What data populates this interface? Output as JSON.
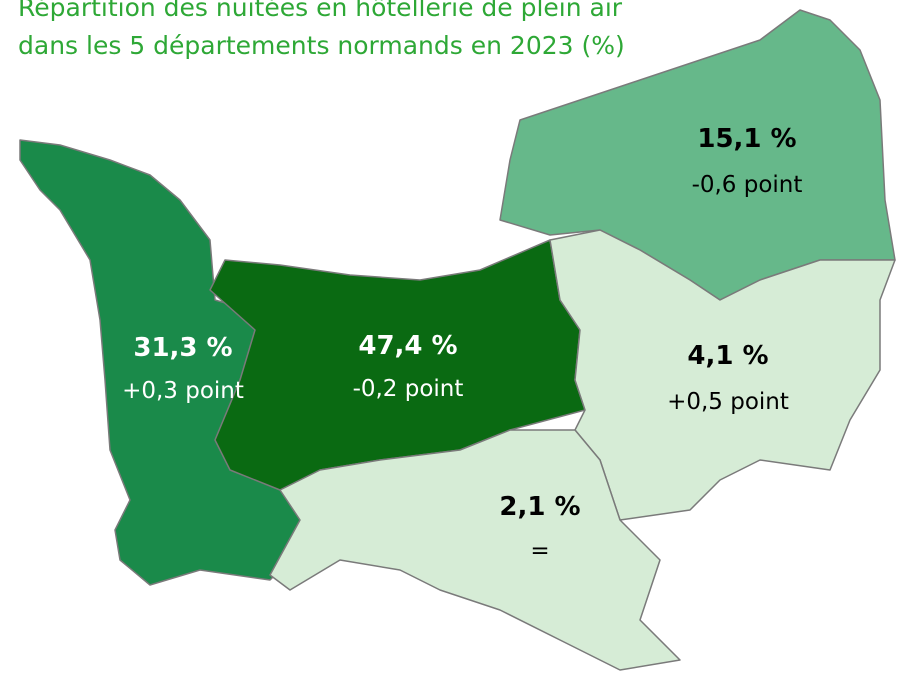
{
  "title": [
    "Répartition des nuitées en hôtellerie de plein air",
    "dans les 5 départements normands en 2023 (%)"
  ],
  "regions": [
    {
      "share": "31,3 %",
      "change": "+0,3 point",
      "color": "#1a8a4a",
      "text_color": "#ffffff"
    },
    {
      "share": "47,4 %",
      "change": "-0,2 point",
      "color": "#0a6a12",
      "text_color": "#ffffff"
    },
    {
      "share": "15,1 %",
      "change": "-0,6 point",
      "color": "#66b88a",
      "text_color": "#000000"
    },
    {
      "share": "4,1 %",
      "change": "+0,5 point",
      "color": "#d6ecd6",
      "text_color": "#000000"
    },
    {
      "share": "2,1 %",
      "change": "=",
      "color": "#d6ecd6",
      "text_color": "#000000"
    }
  ]
}
